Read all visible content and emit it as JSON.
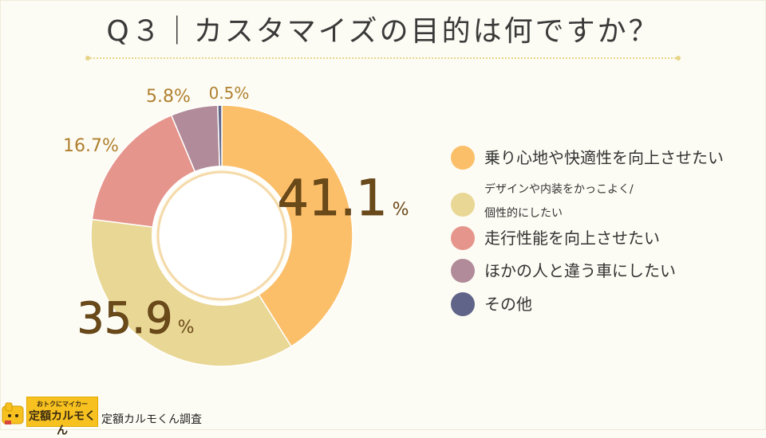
{
  "title": "Q３｜カスタマイズの目的は何ですか？",
  "chart_data": {
    "type": "pie",
    "variant": "donut",
    "title": "Q３｜カスタマイズの目的は何ですか？",
    "unit": "%",
    "categories": [
      "乗り心地や快適性を向上させたい",
      "デザインや内装をかっこよく/個性的にしたい",
      "走行性能を向上させたい",
      "ほかの人と違う車にしたい",
      "その他"
    ],
    "values": [
      41.1,
      35.9,
      16.7,
      5.8,
      0.5
    ],
    "labels": [
      "41.1",
      "35.9",
      "16.7%",
      "5.8%",
      "0.5%"
    ],
    "colors": [
      "#fbbf69",
      "#e9d795",
      "#e6958c",
      "#b18b99",
      "#5f6488"
    ],
    "legend_position": "right"
  },
  "legend": {
    "items": [
      {
        "lines": [
          "乗り心地や快適性を向上させたい"
        ],
        "color": "#fbbf69"
      },
      {
        "lines": [
          "デザインや内装をかっこよく/",
          "個性的にしたい"
        ],
        "color": "#e9d795"
      },
      {
        "lines": [
          "走行性能を向上させたい"
        ],
        "color": "#e6958c"
      },
      {
        "lines": [
          "ほかの人と違う車にしたい"
        ],
        "color": "#b18b99"
      },
      {
        "lines": [
          "その他"
        ],
        "color": "#5f6488"
      }
    ]
  },
  "footer": {
    "brand_tagline": "おトクにマイカー",
    "brand_name": "定額カルモくん",
    "source": "定額カルモくん調査"
  }
}
